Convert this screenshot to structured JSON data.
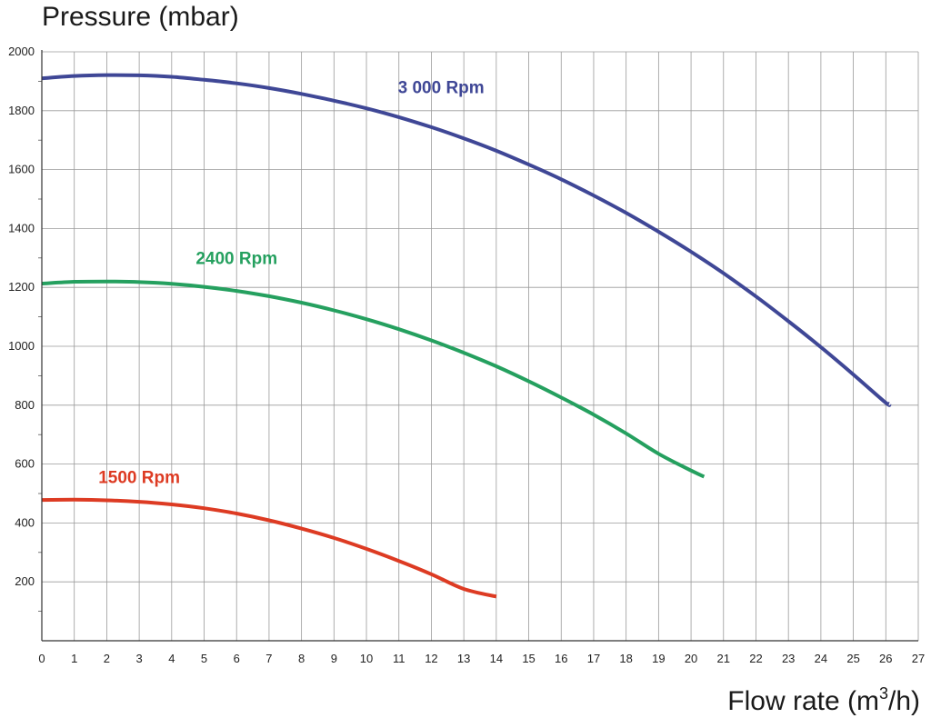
{
  "chart_data": {
    "type": "line",
    "title": "",
    "ylabel": "Pressure (mbar)",
    "xlabel_base": "Flow rate (m",
    "xlabel_sup": "3",
    "xlabel_end": "/h)",
    "xlim": [
      0,
      27
    ],
    "ylim": [
      0,
      2000
    ],
    "x_ticks": [
      "0",
      "1",
      "2",
      "3",
      "4",
      "5",
      "6",
      "7",
      "8",
      "9",
      "10",
      "11",
      "12",
      "13",
      "14",
      "15",
      "16",
      "17",
      "18",
      "19",
      "20",
      "21",
      "22",
      "23",
      "24",
      "25",
      "26",
      "27"
    ],
    "y_ticks": [
      "200",
      "400",
      "600",
      "800",
      "1000",
      "1200",
      "1400",
      "1600",
      "1800",
      "2000"
    ],
    "grid": true,
    "series": [
      {
        "name": "3 000 Rpm",
        "color": "#3f4796",
        "x": [
          0,
          1,
          2,
          3,
          4,
          5,
          6,
          7,
          8,
          9,
          10,
          11,
          12,
          13,
          14,
          15,
          16,
          17,
          18,
          19,
          20,
          21,
          22,
          23,
          24,
          25,
          26,
          26.1
        ],
        "y": [
          1910,
          1918,
          1921,
          1920,
          1915,
          1905,
          1893,
          1877,
          1857,
          1834,
          1808,
          1778,
          1744,
          1706,
          1664,
          1617,
          1567,
          1512,
          1453,
          1389,
          1321,
          1248,
          1169,
          1085,
          997,
          904,
          808,
          805
        ]
      },
      {
        "name": "2400 Rpm",
        "color": "#25a05f",
        "x": [
          0,
          1,
          2,
          3,
          4,
          5,
          6,
          7,
          8,
          9,
          10,
          11,
          12,
          13,
          14,
          15,
          16,
          17,
          18,
          19,
          20,
          20.4
        ],
        "y": [
          1213,
          1219,
          1220,
          1218,
          1212,
          1202,
          1188,
          1170,
          1148,
          1122,
          1092,
          1058,
          1020,
          978,
          932,
          881,
          826,
          768,
          704,
          635,
          578,
          557
        ]
      },
      {
        "name": "1500 Rpm",
        "color": "#dd3b23",
        "x": [
          0,
          1,
          2,
          3,
          4,
          5,
          6,
          7,
          8,
          9,
          10,
          11,
          12,
          13,
          14
        ],
        "y": [
          478,
          479,
          477,
          472,
          463,
          450,
          432,
          409,
          381,
          349,
          312,
          271,
          226,
          176,
          150
        ]
      }
    ]
  }
}
